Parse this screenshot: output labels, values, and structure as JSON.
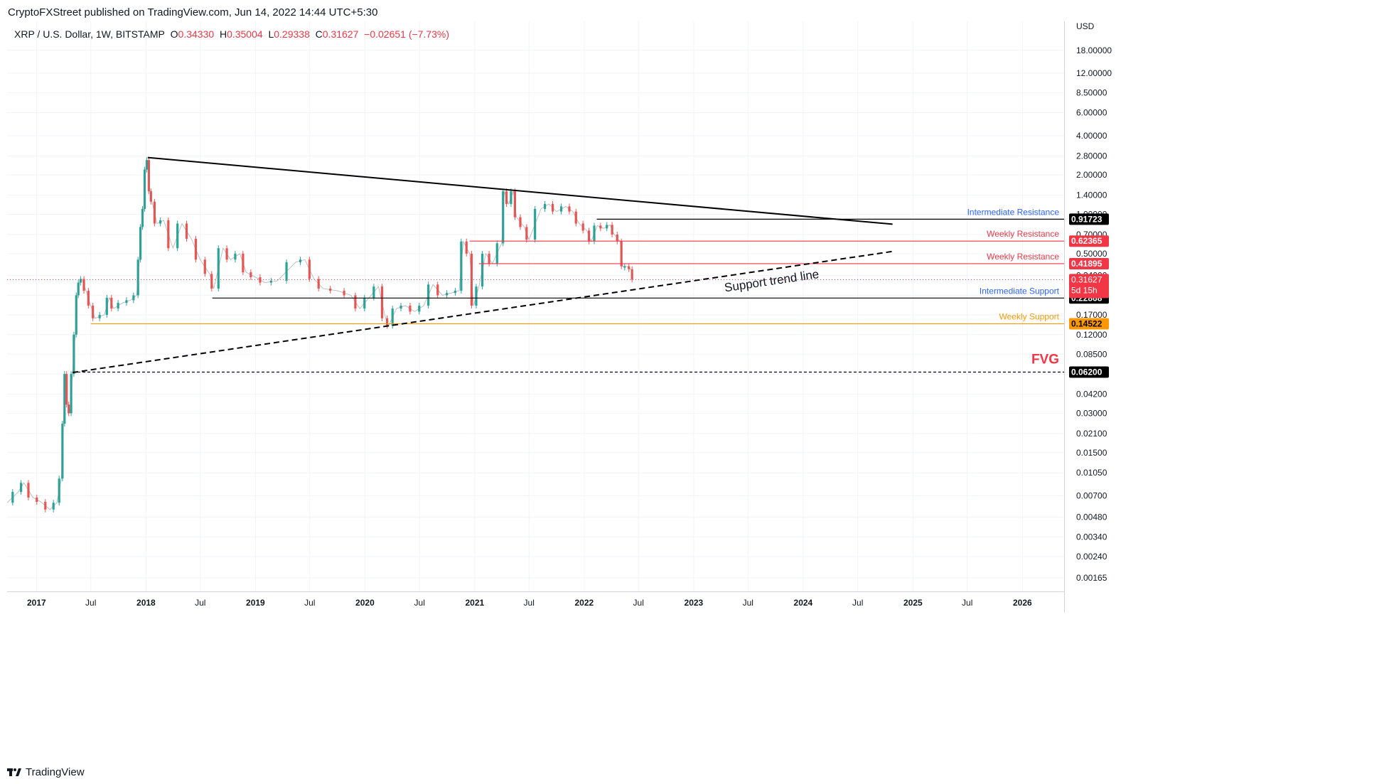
{
  "header": {
    "publisher": "CryptoFXStreet published on TradingView.com, Jun 14, 2022 14:44 UTC+5:30"
  },
  "legend": {
    "symbol": "XRP / U.S. Dollar, 1W, BITSTAMP",
    "o_label": "O",
    "o_value": "0.34330",
    "h_label": "H",
    "h_value": "0.35004",
    "l_label": "L",
    "l_value": "0.29338",
    "c_label": "C",
    "c_value": "0.31627",
    "change": "−0.02651 (−7.73%)"
  },
  "footer": {
    "brand": "TradingView"
  },
  "chart_data": {
    "type": "candlestick",
    "scale": "log",
    "currency": "USD",
    "ylim": [
      0.0013,
      30
    ],
    "y_ticks": [
      "18.00000",
      "12.00000",
      "8.50000",
      "6.00000",
      "4.00000",
      "2.80000",
      "2.00000",
      "1.40000",
      "1.00000",
      "0.70000",
      "0.50000",
      "0.34000",
      "0.24000",
      "0.17000",
      "0.12000",
      "0.08500",
      "0.06000",
      "0.04200",
      "0.03000",
      "0.02100",
      "0.01500",
      "0.01050",
      "0.00700",
      "0.00480",
      "0.00340",
      "0.00240",
      "0.00165"
    ],
    "x_range": [
      "2016-09-25",
      "2026-05-20"
    ],
    "x_ticks": [
      {
        "date": "2017-01-01",
        "label": "2017",
        "bold": true
      },
      {
        "date": "2017-07-01",
        "label": "Jul",
        "bold": false
      },
      {
        "date": "2018-01-01",
        "label": "2018",
        "bold": true
      },
      {
        "date": "2018-07-01",
        "label": "Jul",
        "bold": false
      },
      {
        "date": "2019-01-01",
        "label": "2019",
        "bold": true
      },
      {
        "date": "2019-07-01",
        "label": "Jul",
        "bold": false
      },
      {
        "date": "2020-01-01",
        "label": "2020",
        "bold": true
      },
      {
        "date": "2020-07-01",
        "label": "Jul",
        "bold": false
      },
      {
        "date": "2021-01-01",
        "label": "2021",
        "bold": true
      },
      {
        "date": "2021-07-01",
        "label": "Jul",
        "bold": false
      },
      {
        "date": "2022-01-01",
        "label": "2022",
        "bold": true
      },
      {
        "date": "2022-07-01",
        "label": "Jul",
        "bold": false
      },
      {
        "date": "2023-01-01",
        "label": "2023",
        "bold": true
      },
      {
        "date": "2023-07-01",
        "label": "Jul",
        "bold": false
      },
      {
        "date": "2024-01-01",
        "label": "2024",
        "bold": true
      },
      {
        "date": "2024-07-01",
        "label": "Jul",
        "bold": false
      },
      {
        "date": "2025-01-01",
        "label": "2025",
        "bold": true
      },
      {
        "date": "2025-07-01",
        "label": "Jul",
        "bold": false
      },
      {
        "date": "2026-01-01",
        "label": "2026",
        "bold": true
      }
    ],
    "close_path": [
      [
        "2016-09-25",
        0.0062
      ],
      [
        "2016-11-01",
        0.0075
      ],
      [
        "2016-11-20",
        0.0088
      ],
      [
        "2016-12-20",
        0.0068
      ],
      [
        "2017-01-15",
        0.0063
      ],
      [
        "2017-02-15",
        0.0055
      ],
      [
        "2017-03-10",
        0.0062
      ],
      [
        "2017-03-25",
        0.0095
      ],
      [
        "2017-04-01",
        0.025
      ],
      [
        "2017-04-08",
        0.06
      ],
      [
        "2017-04-15",
        0.035
      ],
      [
        "2017-04-22",
        0.03
      ],
      [
        "2017-05-01",
        0.06
      ],
      [
        "2017-05-10",
        0.12
      ],
      [
        "2017-05-17",
        0.24
      ],
      [
        "2017-05-24",
        0.3
      ],
      [
        "2017-06-01",
        0.32
      ],
      [
        "2017-06-15",
        0.26
      ],
      [
        "2017-07-01",
        0.2
      ],
      [
        "2017-07-15",
        0.16
      ],
      [
        "2017-08-15",
        0.17
      ],
      [
        "2017-09-01",
        0.23
      ],
      [
        "2017-09-15",
        0.19
      ],
      [
        "2017-10-15",
        0.21
      ],
      [
        "2017-11-10",
        0.22
      ],
      [
        "2017-12-01",
        0.24
      ],
      [
        "2017-12-10",
        0.45
      ],
      [
        "2017-12-17",
        0.8
      ],
      [
        "2017-12-24",
        1.1
      ],
      [
        "2017-12-31",
        2.2
      ],
      [
        "2018-01-07",
        2.6
      ],
      [
        "2018-01-14",
        1.5
      ],
      [
        "2018-01-21",
        1.25
      ],
      [
        "2018-02-07",
        0.85
      ],
      [
        "2018-03-01",
        0.9
      ],
      [
        "2018-04-01",
        0.55
      ],
      [
        "2018-05-01",
        0.85
      ],
      [
        "2018-06-01",
        0.65
      ],
      [
        "2018-07-01",
        0.45
      ],
      [
        "2018-08-01",
        0.35
      ],
      [
        "2018-08-15",
        0.27
      ],
      [
        "2018-09-15",
        0.55
      ],
      [
        "2018-10-10",
        0.45
      ],
      [
        "2018-11-10",
        0.5
      ],
      [
        "2018-12-01",
        0.36
      ],
      [
        "2019-01-01",
        0.33
      ],
      [
        "2019-02-01",
        0.3
      ],
      [
        "2019-03-15",
        0.31
      ],
      [
        "2019-05-15",
        0.43
      ],
      [
        "2019-06-15",
        0.45
      ],
      [
        "2019-07-15",
        0.32
      ],
      [
        "2019-08-15",
        0.27
      ],
      [
        "2019-10-01",
        0.26
      ],
      [
        "2019-11-15",
        0.24
      ],
      [
        "2019-12-15",
        0.19
      ],
      [
        "2020-01-15",
        0.23
      ],
      [
        "2020-02-15",
        0.28
      ],
      [
        "2020-03-10",
        0.16
      ],
      [
        "2020-03-20",
        0.14
      ],
      [
        "2020-04-15",
        0.19
      ],
      [
        "2020-05-15",
        0.2
      ],
      [
        "2020-06-15",
        0.18
      ],
      [
        "2020-07-15",
        0.2
      ],
      [
        "2020-08-15",
        0.29
      ],
      [
        "2020-09-15",
        0.24
      ],
      [
        "2020-10-15",
        0.25
      ],
      [
        "2020-11-10",
        0.26
      ],
      [
        "2020-11-24",
        0.62
      ],
      [
        "2020-12-15",
        0.5
      ],
      [
        "2020-12-28",
        0.2
      ],
      [
        "2021-01-15",
        0.28
      ],
      [
        "2021-02-07",
        0.5
      ],
      [
        "2021-03-01",
        0.42
      ],
      [
        "2021-04-01",
        0.6
      ],
      [
        "2021-04-10",
        1.5
      ],
      [
        "2021-04-24",
        1.2
      ],
      [
        "2021-05-10",
        1.5
      ],
      [
        "2021-05-20",
        0.95
      ],
      [
        "2021-06-15",
        0.8
      ],
      [
        "2021-07-01",
        0.64
      ],
      [
        "2021-08-10",
        1.1
      ],
      [
        "2021-09-05",
        1.2
      ],
      [
        "2021-10-01",
        1.05
      ],
      [
        "2021-11-01",
        1.15
      ],
      [
        "2021-11-24",
        1.05
      ],
      [
        "2021-12-15",
        0.85
      ],
      [
        "2022-01-10",
        0.75
      ],
      [
        "2022-01-24",
        0.62
      ],
      [
        "2022-02-14",
        0.82
      ],
      [
        "2022-03-07",
        0.78
      ],
      [
        "2022-03-28",
        0.83
      ],
      [
        "2022-04-11",
        0.7
      ],
      [
        "2022-05-01",
        0.62
      ],
      [
        "2022-05-09",
        0.4
      ],
      [
        "2022-05-23",
        0.4
      ],
      [
        "2022-06-06",
        0.38
      ],
      [
        "2022-06-13",
        0.31627
      ]
    ],
    "trend_lines": [
      {
        "name": "descending-resistance",
        "from": [
          "2018-01-07",
          2.72
        ],
        "to": [
          "2024-10-25",
          0.84
        ],
        "style": "solid",
        "color": "#000000"
      },
      {
        "name": "support-trend-line",
        "from": [
          "2017-05-01",
          0.0615
        ],
        "to": [
          "2024-10-25",
          0.52
        ],
        "style": "dashed",
        "color": "#000000",
        "label": "Support trend line"
      }
    ],
    "levels": [
      {
        "value": 0.91723,
        "price_label": "0.91723",
        "label": "Intermediate Resistance",
        "color": "#2962ff",
        "line_color": "#000000",
        "box_color": "#000000",
        "text_color": "#ffffff",
        "from": "2022-02-12",
        "style": "solid"
      },
      {
        "value": 0.62365,
        "price_label": "0.62365",
        "label": "Weekly Resistance",
        "color": "#f23645",
        "line_color": "#f23645",
        "box_color": "#f23645",
        "text_color": "#ffffff",
        "from": "2020-12-15",
        "style": "solid"
      },
      {
        "value": 0.41895,
        "price_label": "0.41895",
        "label": "Weekly Resistance",
        "color": "#f23645",
        "line_color": "#f23645",
        "box_color": "#f23645",
        "text_color": "#ffffff",
        "from": "2021-01-15",
        "style": "solid"
      },
      {
        "value": 0.22868,
        "price_label": "0.22868",
        "label": "Intermediate Support",
        "color": "#2962ff",
        "line_color": "#000000",
        "box_color": "#000000",
        "text_color": "#ffffff",
        "from": "2018-08-10",
        "style": "solid"
      },
      {
        "value": 0.14522,
        "price_label": "0.14522",
        "label": "Weekly Support",
        "color": "#ff9800",
        "line_color": "#ff9800",
        "box_color": "#ff9800",
        "text_color": "#000000",
        "from": "2017-07-01",
        "style": "solid"
      },
      {
        "value": 0.062,
        "price_label": "0.06200",
        "label": "FVG",
        "color": "#f23645",
        "line_color": "#000000",
        "box_color": "#000000",
        "text_color": "#ffffff",
        "from": "2017-05-01",
        "style": "dashed"
      }
    ],
    "current_price": {
      "value": 0.31627,
      "price_label": "0.31627",
      "countdown": "5d 15h",
      "color": "#f23645"
    },
    "colors": {
      "up": "#26a69a",
      "down": "#ef5350",
      "grid": "#f0f3fa"
    }
  }
}
